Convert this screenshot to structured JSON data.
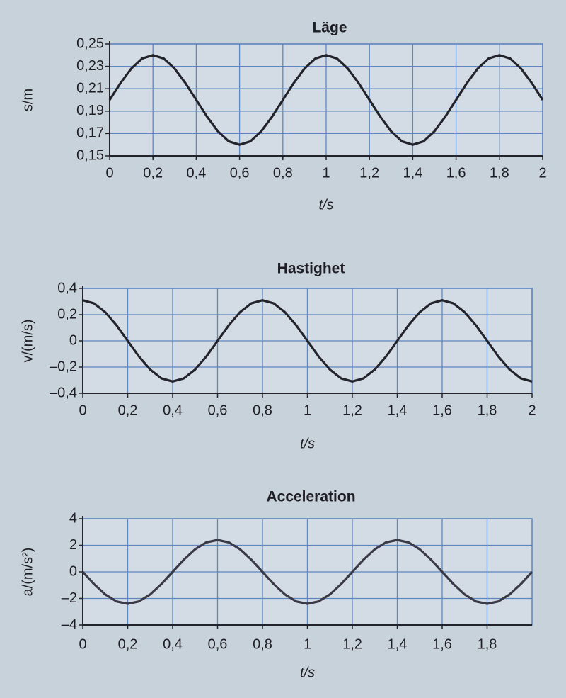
{
  "chart_data": [
    {
      "type": "line",
      "title": "Läge",
      "x_label": "t/s",
      "y_label": "s/m",
      "x": [
        0,
        0.05,
        0.1,
        0.15,
        0.2,
        0.25,
        0.3,
        0.35,
        0.4,
        0.45,
        0.5,
        0.55,
        0.6,
        0.65,
        0.7,
        0.75,
        0.8,
        0.85,
        0.9,
        0.95,
        1,
        1.05,
        1.1,
        1.15,
        1.2,
        1.25,
        1.3,
        1.35,
        1.4,
        1.45,
        1.5,
        1.55,
        1.6,
        1.65,
        1.7,
        1.75,
        1.8,
        1.85,
        1.9,
        1.95,
        2
      ],
      "series": [
        {
          "color": "#23232c",
          "values": [
            0.2,
            0.215,
            0.228,
            0.237,
            0.24,
            0.237,
            0.228,
            0.215,
            0.2,
            0.185,
            0.172,
            0.163,
            0.16,
            0.163,
            0.172,
            0.185,
            0.2,
            0.215,
            0.228,
            0.237,
            0.24,
            0.237,
            0.228,
            0.215,
            0.2,
            0.185,
            0.172,
            0.163,
            0.16,
            0.163,
            0.172,
            0.185,
            0.2,
            0.215,
            0.228,
            0.237,
            0.24,
            0.237,
            0.228,
            0.215,
            0.2
          ]
        }
      ],
      "xlim": [
        0,
        2
      ],
      "xticks": [
        0,
        {
          "value": 0.2,
          "label": "0,2"
        },
        {
          "value": 0.4,
          "label": "0,4"
        },
        {
          "value": 0.6,
          "label": "0,6"
        },
        {
          "value": 0.8,
          "label": "0,8"
        },
        1,
        {
          "value": 1.2,
          "label": "1,2"
        },
        {
          "value": 1.4,
          "label": "1,4"
        },
        {
          "value": 1.6,
          "label": "1,6"
        },
        {
          "value": 1.8,
          "label": "1,8"
        },
        2
      ],
      "ylim": [
        0.15,
        0.25
      ],
      "yticks": [
        {
          "value": 0.15,
          "label": "0,15"
        },
        {
          "value": 0.17,
          "label": "0,17"
        },
        {
          "value": 0.19,
          "label": "0,19"
        },
        {
          "value": 0.21,
          "label": "0,21"
        },
        {
          "value": 0.23,
          "label": "0,23"
        },
        {
          "value": 0.25,
          "label": "0,25"
        }
      ],
      "grid": true
    },
    {
      "type": "line",
      "title": "Hastighet",
      "x_label": "t/s",
      "y_label": "v/(m/s)",
      "x": [
        0,
        0.05,
        0.1,
        0.15,
        0.2,
        0.25,
        0.3,
        0.35,
        0.4,
        0.45,
        0.5,
        0.55,
        0.6,
        0.65,
        0.7,
        0.75,
        0.8,
        0.85,
        0.9,
        0.95,
        1,
        1.05,
        1.1,
        1.15,
        1.2,
        1.25,
        1.3,
        1.35,
        1.4,
        1.45,
        1.5,
        1.55,
        1.6,
        1.65,
        1.7,
        1.75,
        1.8,
        1.85,
        1.9,
        1.95,
        2
      ],
      "series": [
        {
          "color": "#23232c",
          "values": [
            0.31,
            0.286,
            0.219,
            0.119,
            0,
            -0.119,
            -0.219,
            -0.286,
            -0.31,
            -0.286,
            -0.219,
            -0.119,
            0,
            0.119,
            0.219,
            0.286,
            0.31,
            0.286,
            0.219,
            0.119,
            0,
            -0.119,
            -0.219,
            -0.286,
            -0.31,
            -0.286,
            -0.219,
            -0.119,
            0,
            0.119,
            0.219,
            0.286,
            0.31,
            0.286,
            0.219,
            0.119,
            0,
            -0.119,
            -0.219,
            -0.286,
            -0.31
          ]
        }
      ],
      "xlim": [
        0,
        2
      ],
      "xticks": [
        0,
        {
          "value": 0.2,
          "label": "0,2"
        },
        {
          "value": 0.4,
          "label": "0,4"
        },
        {
          "value": 0.6,
          "label": "0,6"
        },
        {
          "value": 0.8,
          "label": "0,8"
        },
        1,
        {
          "value": 1.2,
          "label": "1,2"
        },
        {
          "value": 1.4,
          "label": "1,4"
        },
        {
          "value": 1.6,
          "label": "1,6"
        },
        {
          "value": 1.8,
          "label": "1,8"
        },
        2
      ],
      "ylim": [
        -0.4,
        0.4
      ],
      "yticks": [
        {
          "value": -0.4,
          "label": "–0,4"
        },
        {
          "value": -0.2,
          "label": "–0,2"
        },
        0,
        {
          "value": 0.2,
          "label": "0,2"
        },
        {
          "value": 0.4,
          "label": "0,4"
        }
      ],
      "grid": true
    },
    {
      "type": "line",
      "title": "Acceleration",
      "x_label": "t/s",
      "y_label": "a/(m/s²)",
      "x": [
        0,
        0.05,
        0.1,
        0.15,
        0.2,
        0.25,
        0.3,
        0.35,
        0.4,
        0.45,
        0.5,
        0.55,
        0.6,
        0.65,
        0.7,
        0.75,
        0.8,
        0.85,
        0.9,
        0.95,
        1,
        1.05,
        1.1,
        1.15,
        1.2,
        1.25,
        1.3,
        1.35,
        1.4,
        1.45,
        1.5,
        1.55,
        1.6,
        1.65,
        1.7,
        1.75,
        1.8,
        1.85,
        1.9,
        1.95,
        2
      ],
      "series": [
        {
          "color": "#3a3a46",
          "values": [
            0,
            -0.92,
            -1.7,
            -2.22,
            -2.4,
            -2.22,
            -1.7,
            -0.92,
            0,
            0.92,
            1.7,
            2.22,
            2.4,
            2.22,
            1.7,
            0.92,
            0,
            -0.92,
            -1.7,
            -2.22,
            -2.4,
            -2.22,
            -1.7,
            -0.92,
            0,
            0.92,
            1.7,
            2.22,
            2.4,
            2.22,
            1.7,
            0.92,
            0,
            -0.92,
            -1.7,
            -2.22,
            -2.4,
            -2.22,
            -1.7,
            -0.92,
            0
          ]
        }
      ],
      "xlim": [
        0,
        2
      ],
      "xticks": [
        0,
        {
          "value": 0.2,
          "label": "0,2"
        },
        {
          "value": 0.4,
          "label": "0,4"
        },
        {
          "value": 0.6,
          "label": "0,6"
        },
        {
          "value": 0.8,
          "label": "0,8"
        },
        1,
        {
          "value": 1.2,
          "label": "1,2"
        },
        {
          "value": 1.4,
          "label": "1,4"
        },
        {
          "value": 1.6,
          "label": "1,6"
        },
        {
          "value": 1.8,
          "label": "1,8"
        }
      ],
      "ylim": [
        -4,
        4
      ],
      "yticks": [
        {
          "value": -4,
          "label": "–4"
        },
        {
          "value": -2,
          "label": "–2"
        },
        0,
        2,
        4
      ],
      "grid": true
    }
  ]
}
